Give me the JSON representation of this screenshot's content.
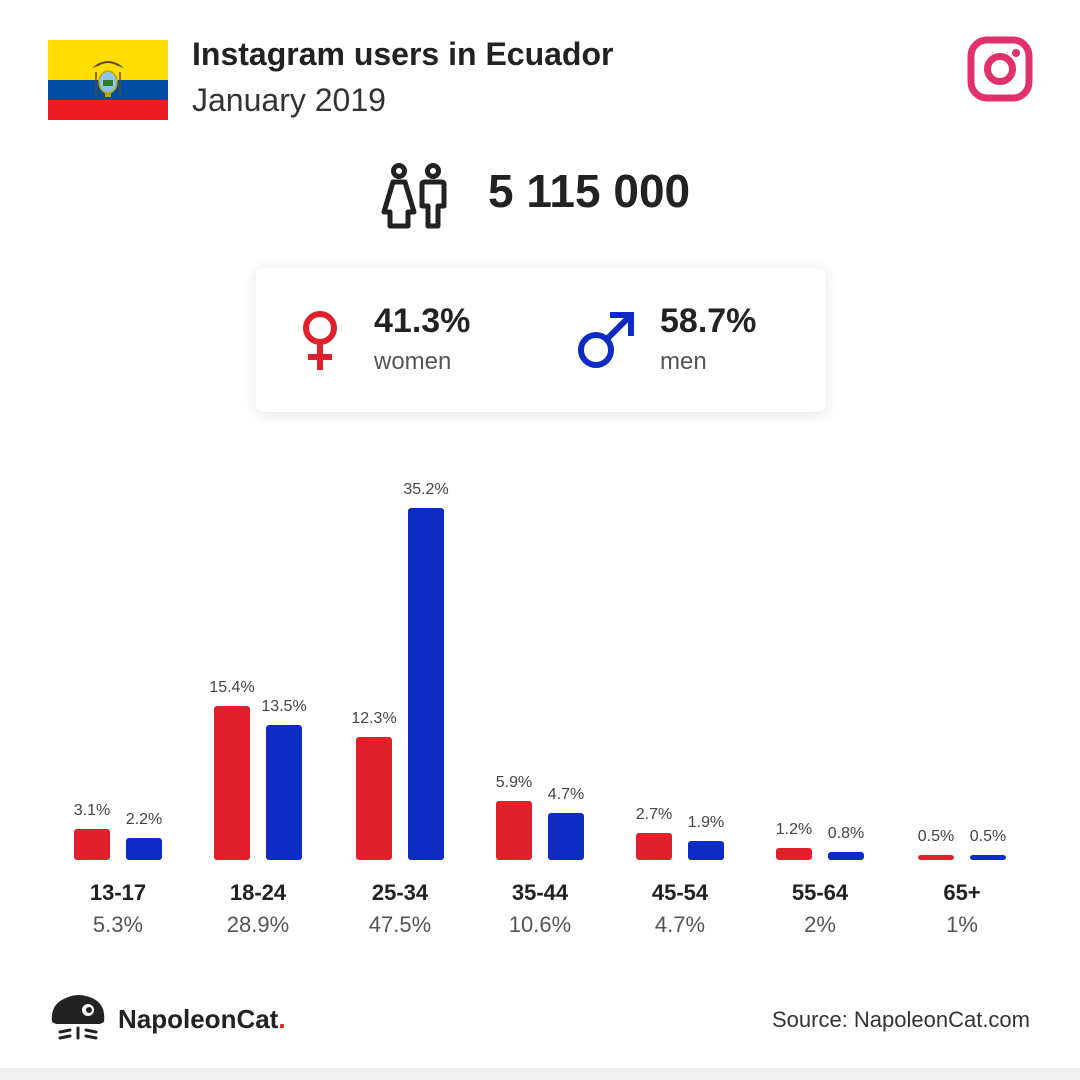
{
  "header": {
    "title": "Instagram users in Ecuador",
    "subtitle": "January 2019"
  },
  "total_users": "5 115 000",
  "gender": {
    "women_pct": "41.3%",
    "women_label": "women",
    "men_pct": "58.7%",
    "men_label": "men"
  },
  "colors": {
    "women": "#e0202a",
    "men": "#0e2bc4",
    "instagram": "#e1306c",
    "flag_yellow": "#ffdd00",
    "flag_blue": "#034ea2",
    "flag_red": "#ed1c24"
  },
  "chart_data": {
    "type": "bar",
    "categories": [
      "13-17",
      "18-24",
      "25-34",
      "35-44",
      "45-54",
      "55-64",
      "65+"
    ],
    "category_totals": [
      "5.3%",
      "28.9%",
      "47.5%",
      "10.6%",
      "4.7%",
      "2%",
      "1%"
    ],
    "series": [
      {
        "name": "women",
        "values": [
          3.1,
          15.4,
          12.3,
          5.9,
          2.7,
          1.2,
          0.5
        ],
        "labels": [
          "3.1%",
          "15.4%",
          "12.3%",
          "5.9%",
          "2.7%",
          "1.2%",
          "0.5%"
        ]
      },
      {
        "name": "men",
        "values": [
          2.2,
          13.5,
          35.2,
          4.7,
          1.9,
          0.8,
          0.5
        ],
        "labels": [
          "2.2%",
          "13.5%",
          "35.2%",
          "4.7%",
          "1.9%",
          "0.8%",
          "0.5%"
        ]
      }
    ],
    "ylim": [
      0,
      35.2
    ]
  },
  "footer": {
    "brand": "NapoleonCat",
    "brand_dot": ".",
    "source": "Source: NapoleonCat.com"
  }
}
